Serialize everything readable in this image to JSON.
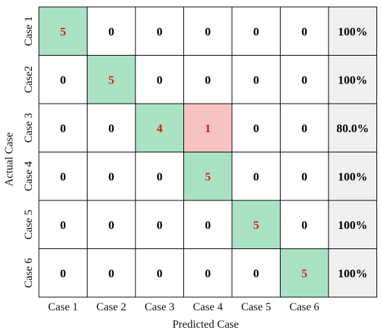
{
  "chart_data": {
    "type": "heatmap",
    "title": "",
    "xlabel": "Predicted Case",
    "ylabel": "Actual Case",
    "x_categories": [
      "Case 1",
      "Case 2",
      "Case 3",
      "Case 4",
      "Case 5",
      "Case 6"
    ],
    "y_categories": [
      "Case 1",
      "Case2",
      "Case 3",
      "Case 4",
      "Case 5",
      "Case 6"
    ],
    "matrix": [
      [
        5,
        0,
        0,
        0,
        0,
        0
      ],
      [
        0,
        5,
        0,
        0,
        0,
        0
      ],
      [
        0,
        0,
        4,
        1,
        0,
        0
      ],
      [
        0,
        0,
        0,
        5,
        0,
        0
      ],
      [
        0,
        0,
        0,
        0,
        5,
        0
      ],
      [
        0,
        0,
        0,
        0,
        0,
        5
      ]
    ],
    "row_summary": [
      "100%",
      "100%",
      "80.0%",
      "100%",
      "100%",
      "100%"
    ],
    "colors": {
      "correct": "#a8e2c2",
      "misclassified": "#f7c3c0",
      "empty": "#ffffff",
      "summary": "#efefef",
      "nonzero_text": "#e3141b",
      "zero_text": "#000000",
      "grid": "#000000"
    }
  }
}
